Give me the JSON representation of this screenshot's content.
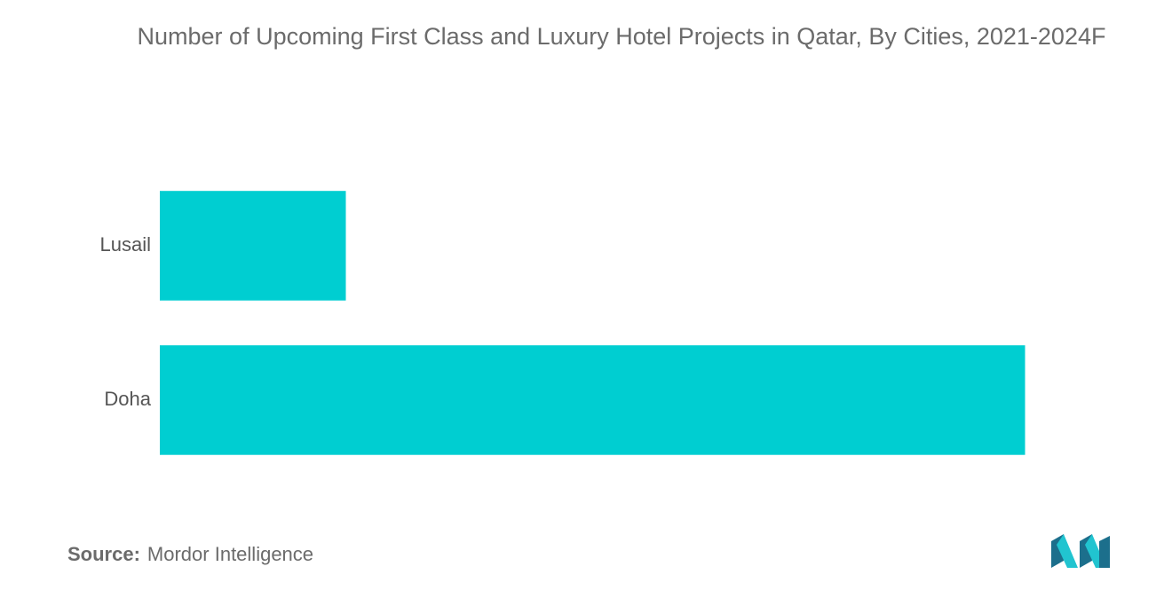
{
  "title": "Number of Upcoming First Class and Luxury Hotel Projects in Qatar, By Cities, 2021-2024F",
  "source": {
    "label": "Source:",
    "text": "Mordor Intelligence"
  },
  "colors": {
    "bar": "#00CED1",
    "title": "#6b6b6b",
    "label": "#555555",
    "logo_dark": "#1c6f8c",
    "logo_light": "#21c4d0"
  },
  "logo": {
    "icon": "mordor-intelligence-logo"
  },
  "chart_data": {
    "type": "bar",
    "orientation": "horizontal",
    "categories": [
      "Lusail",
      "Doha"
    ],
    "values": [
      2.15,
      10
    ],
    "xlim": [
      0,
      10.2
    ],
    "grid": false,
    "legend": "none",
    "xlabel": "",
    "ylabel": ""
  }
}
